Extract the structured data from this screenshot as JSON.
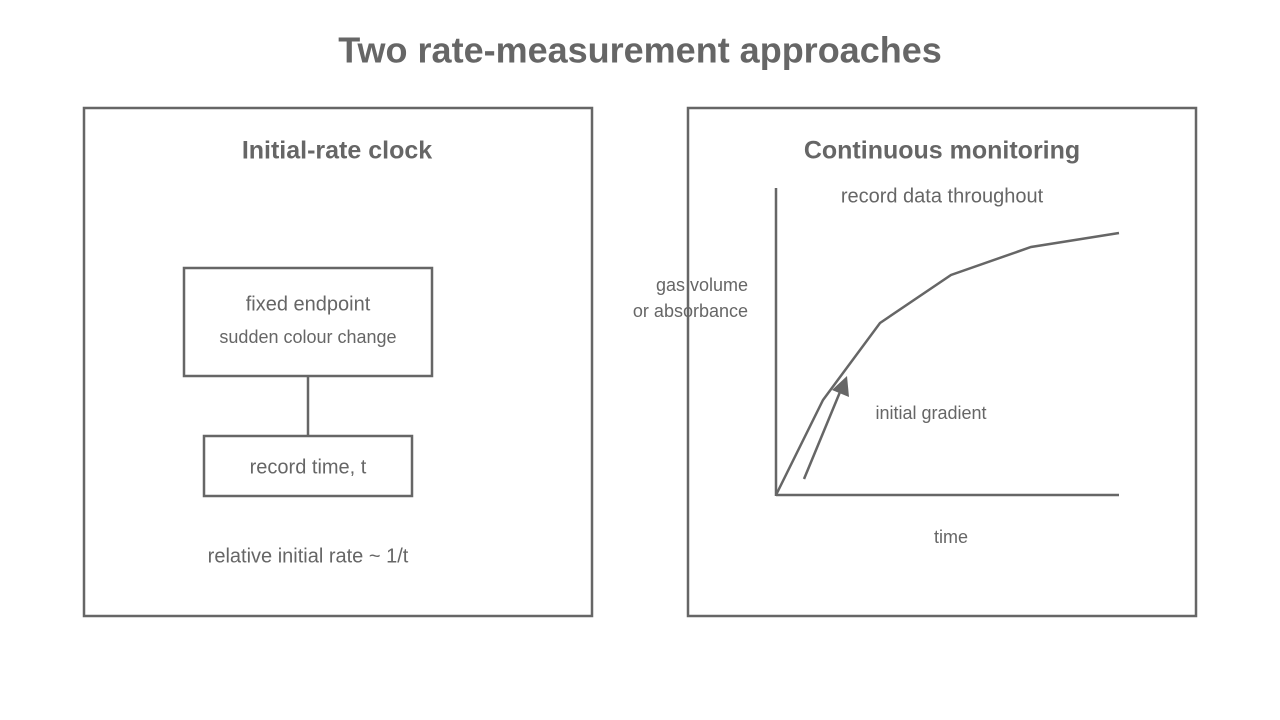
{
  "title": "Two rate-measurement approaches",
  "panels": [
    {
      "title": "Initial-rate clock",
      "boxes": [
        {
          "label": "fixed endpoint",
          "sublabel": "sudden colour change"
        },
        {
          "label": "record time, t"
        }
      ],
      "note": "relative initial rate ~ 1/t"
    },
    {
      "title": "Continuous monitoring",
      "graph_caption": "record data throughout",
      "y_label": [
        "gas volume",
        "or absorbance"
      ],
      "annotation": "initial gradient",
      "x_label": "time"
    }
  ]
}
